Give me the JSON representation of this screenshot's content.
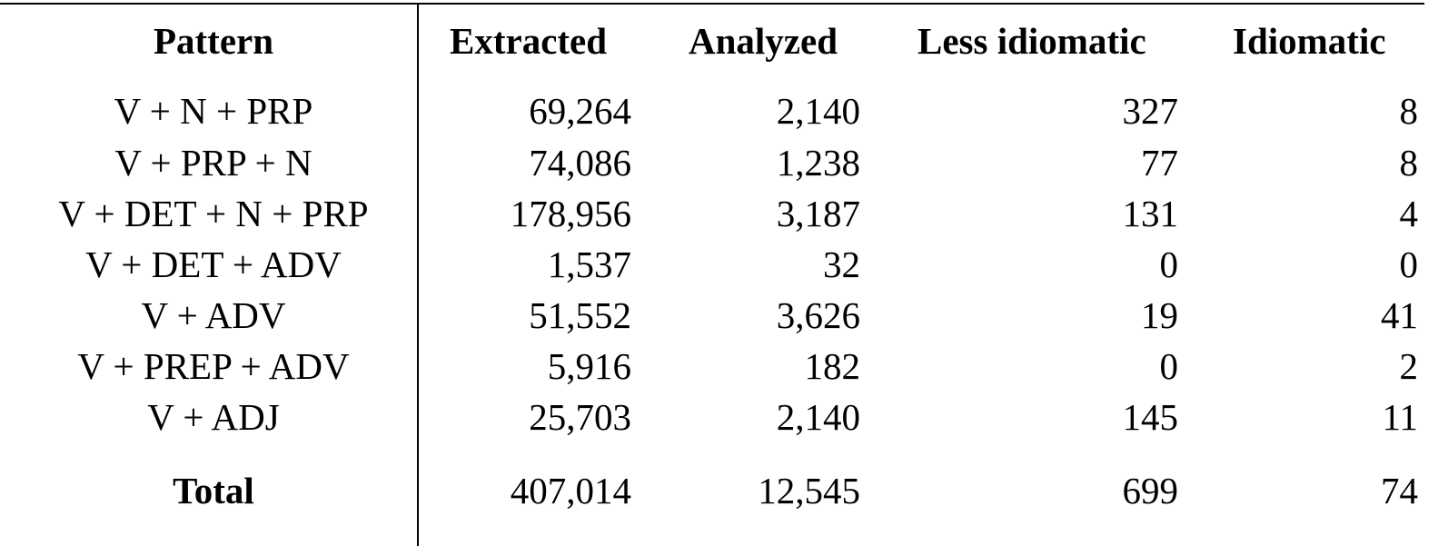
{
  "table": {
    "columns": [
      "Pattern",
      "Extracted",
      "Analyzed",
      "Less idiomatic",
      "Idiomatic"
    ],
    "rows": [
      {
        "pattern": "V + N + PRP",
        "extracted": "69,264",
        "analyzed": "2,140",
        "less_idiomatic": "327",
        "idiomatic": "8"
      },
      {
        "pattern": "V + PRP + N",
        "extracted": "74,086",
        "analyzed": "1,238",
        "less_idiomatic": "77",
        "idiomatic": "8"
      },
      {
        "pattern": "V + DET + N + PRP",
        "extracted": "178,956",
        "analyzed": "3,187",
        "less_idiomatic": "131",
        "idiomatic": "4"
      },
      {
        "pattern": "V + DET + ADV",
        "extracted": "1,537",
        "analyzed": "32",
        "less_idiomatic": "0",
        "idiomatic": "0"
      },
      {
        "pattern": "V + ADV",
        "extracted": "51,552",
        "analyzed": "3,626",
        "less_idiomatic": "19",
        "idiomatic": "41"
      },
      {
        "pattern": "V + PREP + ADV",
        "extracted": "5,916",
        "analyzed": "182",
        "less_idiomatic": "0",
        "idiomatic": "2"
      },
      {
        "pattern": "V + ADJ",
        "extracted": "25,703",
        "analyzed": "2,140",
        "less_idiomatic": "145",
        "idiomatic": "11"
      }
    ],
    "total": {
      "pattern": "Total",
      "extracted": "407,014",
      "analyzed": "12,545",
      "less_idiomatic": "699",
      "idiomatic": "74"
    }
  }
}
